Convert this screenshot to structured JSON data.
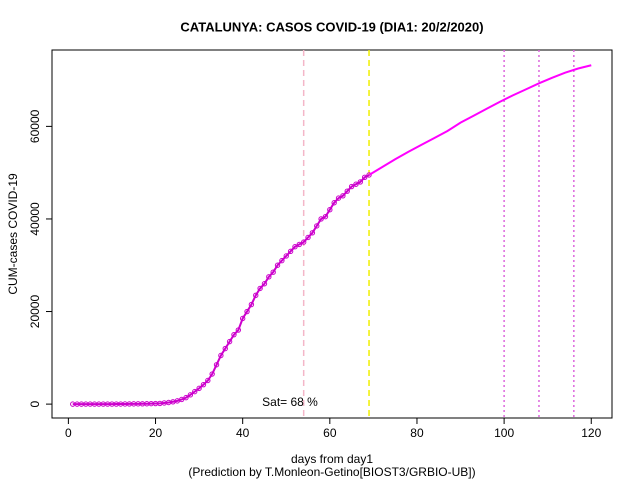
{
  "chart_data": {
    "type": "line",
    "title": "CATALUNYA: CASOS COVID-19 (DIA1: 20/2/2020)",
    "x_label": "days from day1",
    "subtitle": "(Prediction by T.Monleon-Getino[BIOST3/GRBIO-UB])",
    "y_label": "CUM-cases COVID-19",
    "annotation": "Sat= 68 %",
    "xlim": [
      -3.76,
      124.76
    ],
    "xticks": [
      0,
      20,
      40,
      60,
      80,
      100,
      120
    ],
    "ylim": [
      -3000,
      76500
    ],
    "yticks": [
      0,
      20000,
      40000,
      60000
    ],
    "series": [
      {
        "color": "#cc00cc",
        "markers": true,
        "x": [
          1,
          2,
          3,
          4,
          5,
          6,
          7,
          8,
          9,
          10,
          11,
          12,
          13,
          14,
          15,
          16,
          17,
          18,
          19,
          20,
          21,
          22,
          23,
          24,
          25,
          26,
          27,
          28,
          29,
          30,
          31,
          32,
          33,
          34,
          35,
          36,
          37,
          38,
          39,
          40,
          41,
          42,
          43,
          44,
          45,
          46,
          47,
          48,
          49,
          50,
          51,
          52,
          53,
          54,
          55,
          56,
          57,
          58,
          59,
          60,
          61,
          62,
          63,
          64,
          65,
          66,
          67,
          68,
          69
        ],
        "values": [
          0,
          0,
          0,
          1,
          1,
          2,
          3,
          4,
          6,
          10,
          15,
          20,
          30,
          40,
          50,
          60,
          70,
          80,
          100,
          120,
          150,
          250,
          350,
          500,
          700,
          1000,
          1400,
          2000,
          2700,
          3400,
          4200,
          5100,
          6500,
          8500,
          10500,
          12000,
          13500,
          15000,
          16000,
          18500,
          20000,
          21500,
          23500,
          25000,
          26000,
          27500,
          28500,
          30000,
          31000,
          32000,
          33000,
          34000,
          34500,
          35000,
          36000,
          37000,
          38500,
          40000,
          40500,
          42000,
          43500,
          44500,
          45000,
          46000,
          47000,
          47500,
          48000,
          49000,
          49500
        ]
      },
      {
        "color": "#ff00ff",
        "markers": false,
        "x": [
          69,
          72,
          75,
          78,
          81,
          84,
          87,
          90,
          93,
          96,
          99,
          102,
          105,
          108,
          111,
          114,
          117,
          120
        ],
        "values": [
          49500,
          51200,
          52900,
          54500,
          56000,
          57500,
          59000,
          60800,
          62300,
          63800,
          65300,
          66700,
          68000,
          69300,
          70500,
          71600,
          72500,
          73200
        ]
      }
    ],
    "vlines": [
      {
        "x": 54,
        "color": "#f4b6c8",
        "style": "dashed"
      },
      {
        "x": 69,
        "color": "#f0f000",
        "style": "dashed"
      },
      {
        "x": 100,
        "color": "#dd66dd",
        "style": "dotted"
      },
      {
        "x": 108,
        "color": "#dd66dd",
        "style": "dotted"
      },
      {
        "x": 116,
        "color": "#dd66dd",
        "style": "dotted"
      }
    ]
  }
}
